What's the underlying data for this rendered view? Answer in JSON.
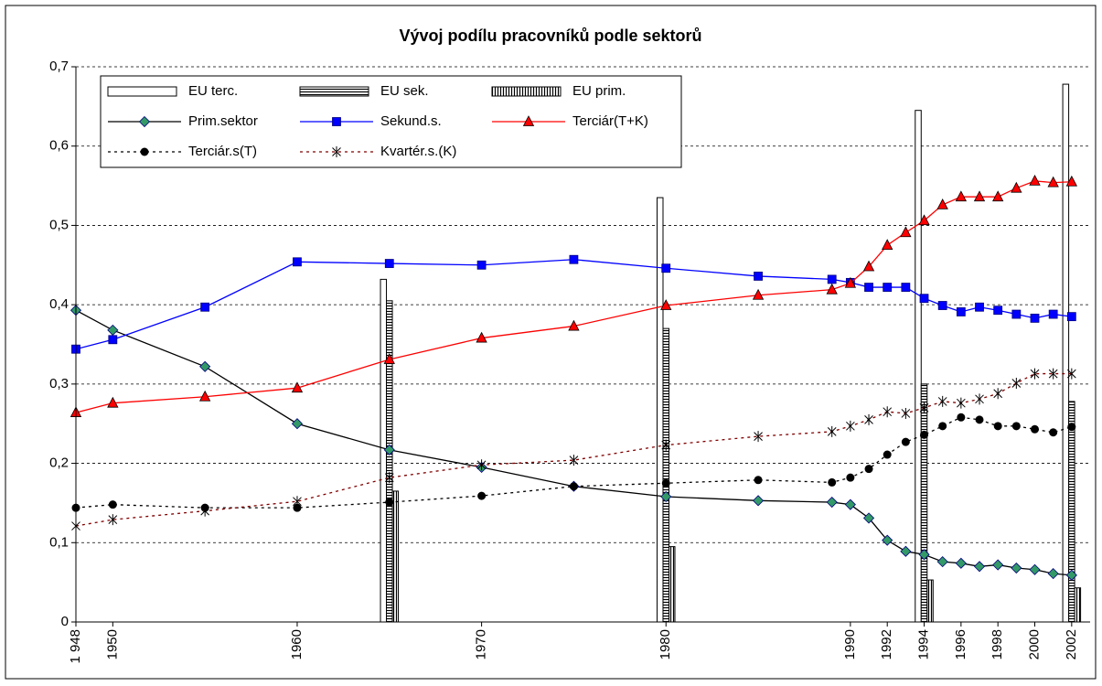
{
  "chart_data": {
    "type": "combo",
    "title": "Vývoj podílu pracovníků podle sektorů",
    "x": [
      1948,
      1950,
      1955,
      1960,
      1965,
      1970,
      1975,
      1980,
      1985,
      1989,
      1990,
      1991,
      1992,
      1993,
      1994,
      1995,
      1996,
      1997,
      1998,
      1999,
      2000,
      2001,
      2002
    ],
    "xlim": [
      1948,
      2003
    ],
    "xticks": [
      {
        "value": 1948,
        "label": "1 948"
      },
      1950,
      1960,
      1970,
      1980,
      1990,
      1992,
      1994,
      1996,
      1998,
      2000,
      2002
    ],
    "ylim": [
      0,
      0.7
    ],
    "yticks": [
      0,
      {
        "value": 0.1,
        "label": "0,1"
      },
      {
        "value": 0.2,
        "label": "0,2"
      },
      {
        "value": 0.3,
        "label": "0,3"
      },
      {
        "value": 0.4,
        "label": "0,4"
      },
      {
        "value": 0.5,
        "label": "0,5"
      },
      {
        "value": 0.6,
        "label": "0,6"
      },
      {
        "value": 0.7,
        "label": "0,7"
      }
    ],
    "grid": true,
    "legend": "upper left",
    "series": [
      {
        "name": "EU terc.",
        "type": "bar",
        "fill": "plain",
        "color": "#000000",
        "x": [
          1965,
          1980,
          1994,
          2002
        ],
        "values": [
          0.432,
          0.535,
          0.645,
          0.678
        ]
      },
      {
        "name": "EU sek.",
        "type": "bar",
        "fill": "hatch-horizontal",
        "color": "#000000",
        "x": [
          1965,
          1980,
          1994,
          2002
        ],
        "values": [
          0.405,
          0.37,
          0.3,
          0.278
        ]
      },
      {
        "name": "EU prim.",
        "type": "bar",
        "fill": "hatch-vertical",
        "color": "#000000",
        "x": [
          1965,
          1980,
          1994,
          2002
        ],
        "values": [
          0.165,
          0.095,
          0.053,
          0.043
        ]
      },
      {
        "name": "Prim.sektor",
        "type": "line",
        "color": "#000000",
        "marker": "diamond",
        "marker_color": "#339966",
        "dash": "solid",
        "values": [
          0.393,
          0.368,
          0.322,
          0.25,
          0.217,
          0.195,
          0.171,
          0.158,
          0.153,
          0.151,
          0.148,
          0.131,
          0.103,
          0.089,
          0.085,
          0.076,
          0.074,
          0.07,
          0.072,
          0.068,
          0.066,
          0.061,
          0.059
        ]
      },
      {
        "name": "Sekund.s.",
        "type": "line",
        "color": "#0000ff",
        "marker": "square",
        "marker_color": "#0000ff",
        "dash": "solid",
        "values": [
          0.344,
          0.356,
          0.397,
          0.454,
          0.452,
          0.45,
          0.457,
          0.446,
          0.436,
          0.432,
          0.428,
          0.422,
          0.422,
          0.422,
          0.408,
          0.399,
          0.391,
          0.397,
          0.393,
          0.388,
          0.383,
          0.388,
          0.385
        ]
      },
      {
        "name": "Terciár(T+K)",
        "type": "line",
        "color": "#ff0000",
        "marker": "triangle",
        "marker_color": "#ff0000",
        "dash": "solid",
        "values": [
          0.264,
          0.276,
          0.284,
          0.295,
          0.331,
          0.358,
          0.373,
          0.399,
          0.412,
          0.419,
          0.427,
          0.448,
          0.475,
          0.491,
          0.506,
          0.526,
          0.536,
          0.536,
          0.536,
          0.547,
          0.556,
          0.554,
          0.555
        ]
      },
      {
        "name": "Terciár.s(T)",
        "type": "line",
        "color": "#000000",
        "marker": "circle",
        "marker_color": "#000000",
        "dash": "dotted",
        "values": [
          0.144,
          0.148,
          0.144,
          0.144,
          0.151,
          0.159,
          0.171,
          0.175,
          0.179,
          0.176,
          0.182,
          0.193,
          0.211,
          0.227,
          0.236,
          0.247,
          0.258,
          0.255,
          0.247,
          0.247,
          0.243,
          0.239,
          0.246
        ]
      },
      {
        "name": "Kvartér.s.(K)",
        "type": "line",
        "color": "#800000",
        "marker": "star",
        "marker_color": "#000000",
        "dash": "dotted",
        "values": [
          0.121,
          0.129,
          0.14,
          0.152,
          0.182,
          0.198,
          0.204,
          0.223,
          0.234,
          0.24,
          0.247,
          0.255,
          0.265,
          0.263,
          0.27,
          0.278,
          0.276,
          0.281,
          0.288,
          0.301,
          0.313,
          0.313,
          0.313
        ]
      }
    ]
  }
}
